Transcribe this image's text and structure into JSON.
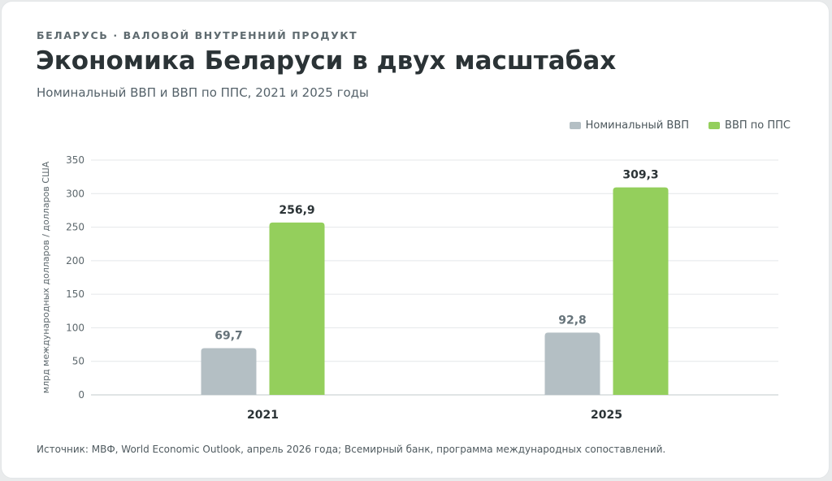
{
  "header": {
    "kicker": "БЕЛАРУСЬ · ВАЛОВОЙ ВНУТРЕННИЙ ПРОДУКТ",
    "title": "Экономика Беларуси в двух масштабах",
    "subtitle": "Номинальный ВВП и ВВП по ППС, 2021 и 2025 годы"
  },
  "legend": {
    "items": [
      {
        "label": "Номинальный ВВП",
        "color": "#b4bfc4"
      },
      {
        "label": "ВВП по ППС",
        "color": "#94cf5c"
      }
    ]
  },
  "source": "Источник: МВФ, World Economic Outlook, апрель 2026 года; Всемирный банк, программа международных сопоставлений.",
  "chart_data": {
    "type": "bar",
    "categories": [
      "2021",
      "2025"
    ],
    "series": [
      {
        "name": "Номинальный ВВП",
        "values": [
          69.7,
          92.8
        ],
        "labels": [
          "69,7",
          "92,8"
        ],
        "color": "#b4bfc4",
        "label_color": "#66737a"
      },
      {
        "name": "ВВП по ППС",
        "values": [
          256.9,
          309.3
        ],
        "labels": [
          "256,9",
          "309,3"
        ],
        "color": "#94cf5c",
        "label_color": "#2b3336"
      }
    ],
    "ylabel": "млрд международных долларов / долларов США",
    "ylim": [
      0,
      350
    ],
    "yticks": [
      0,
      50,
      100,
      150,
      200,
      250,
      300,
      350
    ],
    "grid": true,
    "legend_position": "top-right"
  }
}
